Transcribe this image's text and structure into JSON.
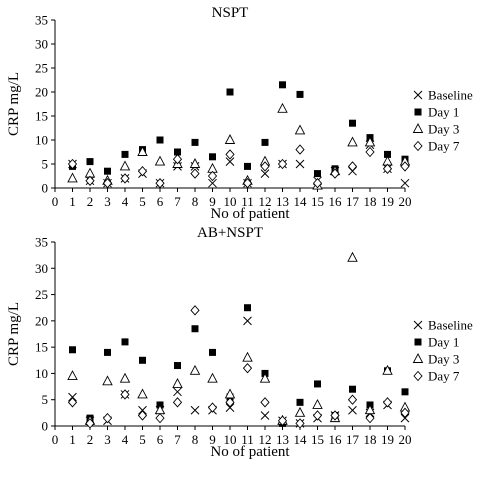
{
  "chart_data": [
    {
      "type": "scatter",
      "title": "NSPT",
      "xlabel": "No of patient",
      "ylabel": "CRP mg/L",
      "xlim": [
        0,
        20
      ],
      "ylim": [
        0,
        35
      ],
      "xticks": [
        0,
        1,
        2,
        3,
        4,
        5,
        6,
        7,
        8,
        9,
        10,
        11,
        12,
        13,
        14,
        15,
        16,
        17,
        18,
        19,
        20
      ],
      "yticks": [
        0,
        5,
        10,
        15,
        20,
        25,
        30,
        35
      ],
      "legend_position": "right",
      "series": [
        {
          "name": "Baseline",
          "marker": "cross",
          "values": [
            5,
            1.5,
            1,
            2,
            3,
            1,
            4.5,
            4.5,
            1,
            5.5,
            1,
            3,
            5,
            5,
            1.5,
            3.5,
            3.5,
            9,
            4,
            1
          ]
        },
        {
          "name": "Day 1",
          "marker": "square",
          "values": [
            4.5,
            5.5,
            3.5,
            7,
            8,
            10,
            7.5,
            9.5,
            6.5,
            20,
            4.5,
            9.5,
            21.5,
            19.5,
            3,
            4,
            13.5,
            10.5,
            7,
            6
          ]
        },
        {
          "name": "Day 3",
          "marker": "triangle",
          "values": [
            2,
            3,
            1.5,
            4.5,
            7.5,
            5.5,
            5,
            5,
            4,
            10,
            1.5,
            5.5,
            16.5,
            12,
            0.5,
            3.5,
            9.5,
            9.5,
            5.5,
            5.5
          ]
        },
        {
          "name": "Day 7",
          "marker": "diamond",
          "values": [
            5,
            1.5,
            1,
            2,
            3.5,
            1,
            6,
            3,
            2.5,
            7,
            1,
            4.5,
            5,
            8,
            1,
            3,
            4.5,
            7.5,
            4,
            4.5
          ]
        }
      ]
    },
    {
      "type": "scatter",
      "title": "AB+NSPT",
      "xlabel": "No of patient",
      "ylabel": "CRP mg/L",
      "xlim": [
        0,
        20
      ],
      "ylim": [
        0,
        35
      ],
      "xticks": [
        0,
        1,
        2,
        3,
        4,
        5,
        6,
        7,
        8,
        9,
        10,
        11,
        12,
        13,
        14,
        15,
        16,
        17,
        18,
        19,
        20
      ],
      "yticks": [
        0,
        5,
        10,
        15,
        20,
        25,
        30,
        35
      ],
      "legend_position": "right",
      "series": [
        {
          "name": "Baseline",
          "marker": "cross",
          "values": [
            5.5,
            1,
            1,
            6,
            3,
            3,
            6.5,
            3,
            3,
            3.5,
            20,
            2,
            1,
            0.5,
            1.5,
            2,
            3,
            2.5,
            4,
            1.5
          ]
        },
        {
          "name": "Day 1",
          "marker": "square",
          "values": [
            14.5,
            1.5,
            14,
            16,
            12.5,
            4,
            11.5,
            18.5,
            14,
            5.5,
            22.5,
            10,
            0.5,
            4.5,
            8,
            2,
            7,
            4,
            10.5,
            6.5
          ]
        },
        {
          "name": "Day 3",
          "marker": "triangle",
          "values": [
            9.5,
            1,
            8.5,
            9,
            6,
            3,
            8,
            10.5,
            9,
            6,
            13,
            9,
            1,
            2.5,
            4,
            1.5,
            32,
            3,
            10.5,
            3.5
          ]
        },
        {
          "name": "Day 7",
          "marker": "diamond",
          "values": [
            4.5,
            0.5,
            1.5,
            6,
            2,
            1.5,
            4.5,
            22,
            3.5,
            4.5,
            11,
            4.5,
            1,
            0.5,
            2,
            2,
            5,
            1.5,
            4.5,
            2.5
          ]
        }
      ]
    }
  ]
}
